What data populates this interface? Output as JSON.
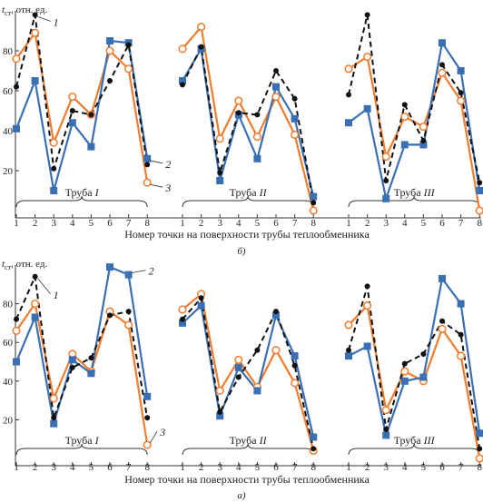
{
  "chart_data": [
    {
      "id": "b",
      "type": "line",
      "panel_label": "б)",
      "ylabel_main": "t",
      "ylabel_sub": "ст",
      "ylabel_rest": ", отн. ед.",
      "xlabel": "Номер точки на поверхности трубы теплообменника",
      "ylim": [
        0,
        100
      ],
      "yticks": [
        20,
        40,
        60,
        80
      ],
      "x": [
        1,
        2,
        3,
        4,
        5,
        6,
        7,
        8
      ],
      "groups": [
        {
          "label": "Труба",
          "numeral": "I",
          "series": [
            {
              "key": "1",
              "values": [
                62,
                98,
                21,
                50,
                48,
                65,
                83,
                23
              ]
            },
            {
              "key": "2",
              "values": [
                41,
                65,
                10,
                44,
                32,
                85,
                84,
                26
              ]
            },
            {
              "key": "3",
              "values": [
                76,
                89,
                34,
                57,
                48,
                80,
                71,
                14
              ]
            }
          ]
        },
        {
          "label": "Труба",
          "numeral": "II",
          "series": [
            {
              "key": "1",
              "values": [
                63,
                82,
                19,
                49,
                48,
                70,
                56,
                4
              ]
            },
            {
              "key": "2",
              "values": [
                65,
                81,
                15,
                48,
                26,
                62,
                46,
                7
              ]
            },
            {
              "key": "3",
              "values": [
                81,
                92,
                36,
                55,
                37,
                57,
                38,
                0
              ]
            }
          ]
        },
        {
          "label": "Труба",
          "numeral": "III",
          "series": [
            {
              "key": "1",
              "values": [
                58,
                98,
                15,
                53,
                35,
                73,
                59,
                14
              ]
            },
            {
              "key": "2",
              "values": [
                44,
                51,
                6,
                33,
                33,
                84,
                70,
                10
              ]
            },
            {
              "key": "3",
              "values": [
                71,
                77,
                27,
                47,
                42,
                69,
                55,
                0
              ]
            }
          ]
        }
      ],
      "callouts": [
        "1",
        "2",
        "3"
      ]
    },
    {
      "id": "a",
      "type": "line",
      "panel_label": "а)",
      "ylabel_main": "t",
      "ylabel_sub": "ст",
      "ylabel_rest": ", отн. ед.",
      "xlabel": "Номер точки на поверхности трубы теплообменника",
      "ylim": [
        0,
        100
      ],
      "yticks": [
        20,
        40,
        60,
        80
      ],
      "x": [
        1,
        2,
        3,
        4,
        5,
        6,
        7,
        8
      ],
      "groups": [
        {
          "label": "Труба",
          "numeral": "I",
          "series": [
            {
              "key": "1",
              "values": [
                72,
                94,
                21,
                47,
                52,
                74,
                76,
                21
              ]
            },
            {
              "key": "2",
              "values": [
                50,
                73,
                18,
                51,
                44,
                99,
                95,
                32
              ]
            },
            {
              "key": "3",
              "values": [
                66,
                80,
                31,
                54,
                45,
                76,
                69,
                7
              ]
            }
          ]
        },
        {
          "label": "Труба",
          "numeral": "II",
          "series": [
            {
              "key": "1",
              "values": [
                72,
                83,
                24,
                42,
                56,
                76,
                48,
                5
              ]
            },
            {
              "key": "2",
              "values": [
                70,
                79,
                22,
                47,
                35,
                74,
                53,
                11
              ]
            },
            {
              "key": "3",
              "values": [
                77,
                85,
                35,
                51,
                37,
                56,
                39,
                4
              ]
            }
          ]
        },
        {
          "label": "Труба",
          "numeral": "III",
          "series": [
            {
              "key": "1",
              "values": [
                56,
                89,
                15,
                49,
                54,
                71,
                64,
                5
              ]
            },
            {
              "key": "2",
              "values": [
                53,
                58,
                12,
                40,
                42,
                93,
                80,
                13
              ]
            },
            {
              "key": "3",
              "values": [
                69,
                79,
                25,
                45,
                40,
                67,
                53,
                0
              ]
            }
          ]
        }
      ],
      "callouts": [
        "1",
        "2",
        "3"
      ]
    }
  ],
  "style": {
    "series_1_color": "#111111",
    "series_2_color": "#3a6fb3",
    "series_3_color": "#f07c2d"
  }
}
